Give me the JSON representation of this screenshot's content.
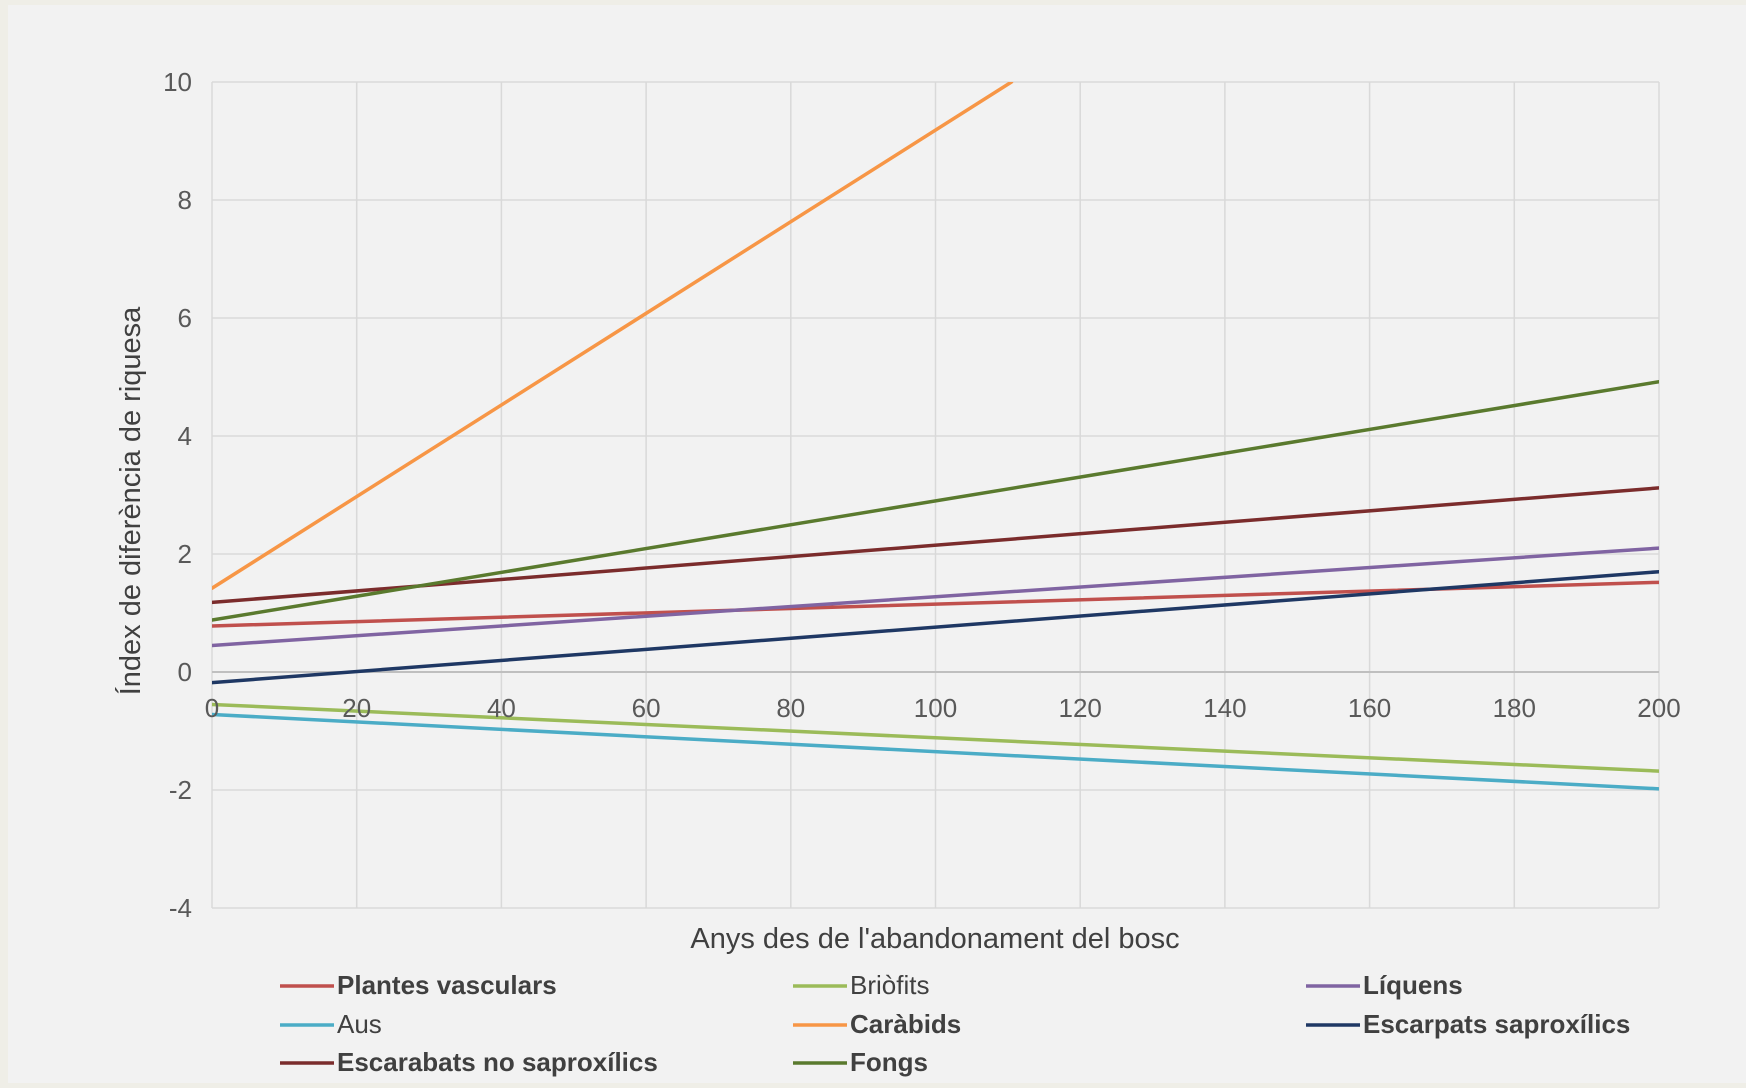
{
  "chart_data": {
    "type": "line",
    "title": "",
    "xlabel": "Anys des de l'abandonament del bosc",
    "ylabel": "Índex de diferència de riquesa",
    "xlim": [
      0,
      200
    ],
    "ylim": [
      -4,
      10
    ],
    "xticks": [
      0,
      20,
      40,
      60,
      80,
      100,
      120,
      140,
      160,
      180,
      200
    ],
    "yticks": [
      -4,
      -2,
      0,
      2,
      4,
      6,
      8,
      10
    ],
    "grid": true,
    "legend_position": "bottom",
    "series": [
      {
        "name": "Plantes vasculars",
        "color": "#c0504d",
        "bold": true,
        "x": [
          0,
          200
        ],
        "y": [
          0.78,
          1.52
        ]
      },
      {
        "name": "Briòfits",
        "color": "#9bbb59",
        "bold": false,
        "x": [
          0,
          200
        ],
        "y": [
          -0.55,
          -1.68
        ]
      },
      {
        "name": "Líquens",
        "color": "#8064a2",
        "bold": true,
        "x": [
          0,
          200
        ],
        "y": [
          0.45,
          2.1
        ]
      },
      {
        "name": "Aus",
        "color": "#4bacc6",
        "bold": false,
        "x": [
          0,
          200
        ],
        "y": [
          -0.72,
          -1.98
        ]
      },
      {
        "name": "Caràbids",
        "color": "#f79646",
        "bold": true,
        "x": [
          0,
          110.5
        ],
        "y": [
          1.42,
          10
        ]
      },
      {
        "name": "Escarpats saproxílics",
        "color": "#1f3864",
        "bold": true,
        "x": [
          0,
          200
        ],
        "y": [
          -0.18,
          1.7
        ]
      },
      {
        "name": "Escarabats no saproxílics",
        "color": "#7b2c2c",
        "bold": true,
        "x": [
          0,
          200
        ],
        "y": [
          1.18,
          3.12
        ]
      },
      {
        "name": "Fongs",
        "color": "#5a7a2e",
        "bold": true,
        "x": [
          0,
          200
        ],
        "y": [
          0.88,
          4.92
        ]
      }
    ]
  }
}
